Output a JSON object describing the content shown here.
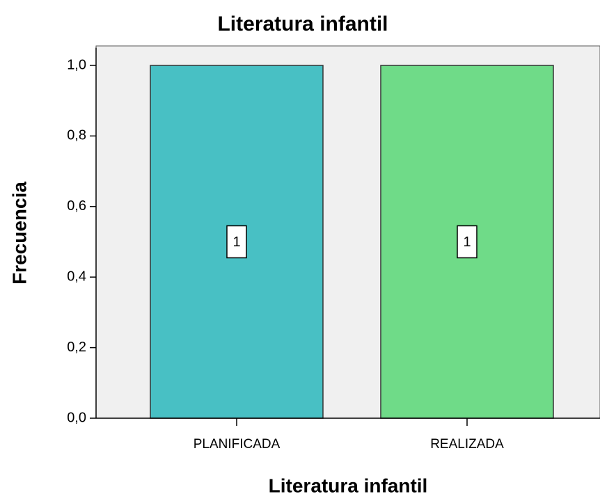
{
  "chart_data": {
    "type": "bar",
    "title": "Literatura infantil",
    "x_label": "Literatura infantil",
    "y_label": "Frecuencia",
    "categories": [
      "PLANIFICADA",
      "REALIZADA"
    ],
    "values": [
      1,
      1
    ],
    "colors": [
      "#48c0c4",
      "#6fdb88"
    ],
    "ylim": [
      0,
      1.05
    ],
    "yticks": [
      {
        "value": 0,
        "label": "0,0"
      },
      {
        "value": 0.2,
        "label": "0,2"
      },
      {
        "value": 0.4,
        "label": "0,4"
      },
      {
        "value": 0.6,
        "label": "0,6"
      },
      {
        "value": 0.8,
        "label": "0,8"
      },
      {
        "value": 1,
        "label": "1,0"
      }
    ]
  }
}
